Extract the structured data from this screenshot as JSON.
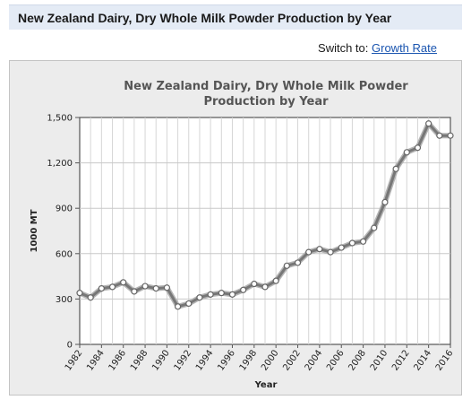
{
  "header": {
    "title": "New Zealand Dairy, Dry Whole Milk Powder Production by Year"
  },
  "switch_control": {
    "prefix": "Switch to:",
    "link_label": "Growth Rate"
  },
  "colors": {
    "header_bg": "#e4ebf5",
    "link": "#1a55b0",
    "frame_bg": "#ececec",
    "line": "#777777",
    "marker_fill": "#ffffff"
  },
  "chart_data": {
    "type": "line",
    "title_lines": [
      "New Zealand Dairy, Dry Whole Milk Powder",
      "Production by Year"
    ],
    "xlabel": "Year",
    "ylabel": "1000 MT",
    "ylim": [
      0,
      1500
    ],
    "yticks": [
      0,
      300,
      600,
      900,
      1200,
      1500
    ],
    "ytick_labels": [
      "0",
      "300",
      "600",
      "900",
      "1,200",
      "1,500"
    ],
    "xlim": [
      1982,
      2016
    ],
    "xtick_labels": [
      "1982",
      "1984",
      "1986",
      "1988",
      "1990",
      "1992",
      "1994",
      "1996",
      "1998",
      "2000",
      "2002",
      "2004",
      "2006",
      "2008",
      "2010",
      "2012",
      "2014",
      "2016"
    ],
    "grid": true,
    "series": [
      {
        "x": [
          1982,
          1983,
          1984,
          1985,
          1986,
          1987,
          1988,
          1989,
          1990,
          1991,
          1992,
          1993,
          1994,
          1995,
          1996,
          1997,
          1998,
          1999,
          2000,
          2001,
          2002,
          2003,
          2004,
          2005,
          2006,
          2007,
          2008,
          2009,
          2010,
          2011,
          2012,
          2013,
          2014,
          2015,
          2016
        ],
        "values": [
          340,
          310,
          370,
          380,
          410,
          350,
          385,
          370,
          375,
          250,
          270,
          310,
          330,
          340,
          330,
          360,
          400,
          380,
          420,
          520,
          540,
          610,
          630,
          610,
          640,
          670,
          680,
          770,
          940,
          1160,
          1270,
          1300,
          1460,
          1380,
          1380
        ]
      }
    ]
  }
}
